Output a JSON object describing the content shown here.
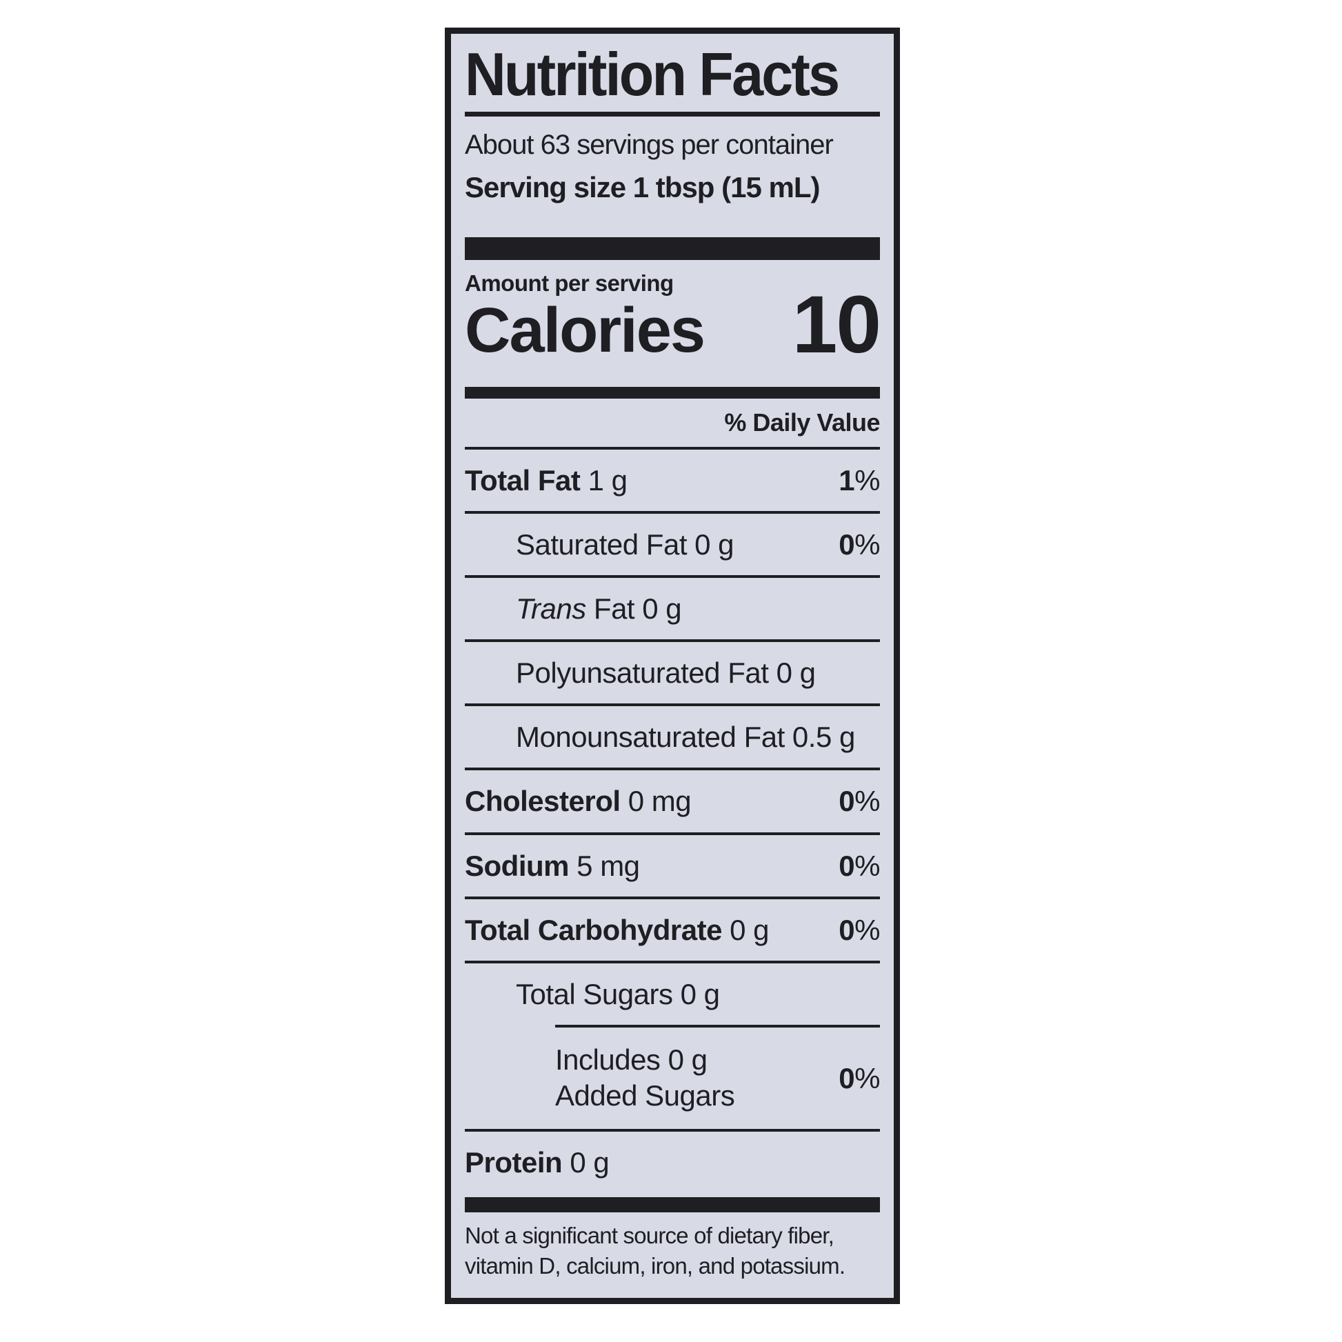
{
  "colors": {
    "ink": "#1e1e23",
    "label_bg": "#d8dae5",
    "page_bg": "#ffffff"
  },
  "label": {
    "title": "Nutrition Facts",
    "servings_per_container": "About 63 servings per container",
    "serving_size_label": "Serving size",
    "serving_size_value": "1 tbsp (15 mL)",
    "amount_per_serving": "Amount per serving",
    "calories_label": "Calories",
    "calories_value": "10",
    "daily_value_header": "% Daily Value",
    "rows": [
      {
        "name": "Total Fat",
        "amount": "1 g",
        "dv": "1%",
        "indent": 0,
        "bold": true,
        "rule_after": "full"
      },
      {
        "name": "Saturated Fat",
        "amount": "0 g",
        "dv": "0%",
        "indent": 1,
        "rule_after": "full"
      },
      {
        "name_italic": "Trans",
        "name": "Fat",
        "amount": "0 g",
        "indent": 1,
        "rule_after": "full"
      },
      {
        "name": "Polyunsaturated Fat",
        "amount": "0 g",
        "indent": 1,
        "rule_after": "full"
      },
      {
        "name": "Monounsaturated Fat",
        "amount": "0.5 g",
        "indent": 1,
        "rule_after": "full"
      },
      {
        "name": "Cholesterol",
        "amount": "0 mg",
        "dv": "0%",
        "indent": 0,
        "bold": true,
        "rule_after": "full"
      },
      {
        "name": "Sodium",
        "amount": "5 mg",
        "dv": "0%",
        "indent": 0,
        "bold": true,
        "rule_after": "full"
      },
      {
        "name": "Total Carbohydrate",
        "amount": "0 g",
        "dv": "0%",
        "indent": 0,
        "bold": true,
        "rule_after": "full"
      },
      {
        "name": "Total Sugars",
        "amount": "0 g",
        "indent": 1,
        "rule_after": "indent2"
      },
      {
        "name_lines": [
          "Includes 0 g",
          "Added Sugars"
        ],
        "dv": "0%",
        "indent": 2,
        "rule_after": "full"
      },
      {
        "name": "Protein",
        "amount": "0 g",
        "indent": 0,
        "bold": true,
        "rule_after": "none"
      }
    ],
    "footnote_line1": "Not a significant source of dietary fiber,",
    "footnote_line2": "vitamin D, calcium, iron, and potassium."
  }
}
